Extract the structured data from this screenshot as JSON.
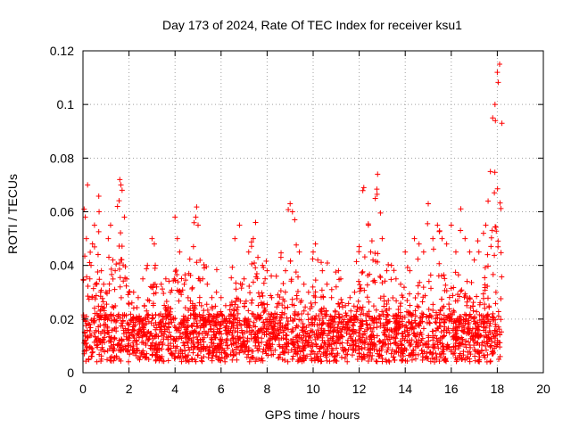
{
  "chart_data": {
    "type": "scatter",
    "title": "Day 173 of 2024, Rate Of TEC Index for receiver ksu1",
    "xlabel": "GPS time / hours",
    "ylabel": "ROTI / TECUs",
    "xlim": [
      0,
      20
    ],
    "ylim": [
      0,
      0.12
    ],
    "xticks": [
      0,
      2,
      4,
      6,
      8,
      10,
      12,
      14,
      16,
      18,
      20
    ],
    "xtick_labels": [
      "0",
      "2",
      "4",
      "6",
      "8",
      "10",
      "12",
      "14",
      "16",
      "18",
      "20"
    ],
    "yticks": [
      0,
      0.02,
      0.04,
      0.06,
      0.08,
      0.1,
      0.12
    ],
    "ytick_labels": [
      "0",
      "0.02",
      "0.04",
      "0.06",
      "0.08",
      "0.1",
      "0.12"
    ],
    "grid": true,
    "marker": "+",
    "color": "#ff0000",
    "series": [
      {
        "name": "ROTI",
        "note": "dense cloud of points from 0 to ~18.2 h, baseline mostly 0.003-0.025 TECU/s",
        "x": [
          0.05,
          0.1,
          0.15,
          0.2,
          0.3,
          0.35,
          0.5,
          0.6,
          0.7,
          0.8,
          0.9,
          1.0,
          1.1,
          1.2,
          1.3,
          1.4,
          1.5,
          1.6,
          1.65,
          1.7,
          1.8,
          1.9,
          2.0,
          2.2,
          2.4,
          2.6,
          2.8,
          3.0,
          3.1,
          3.2,
          3.4,
          3.6,
          3.8,
          4.0,
          4.1,
          4.2,
          4.4,
          4.6,
          4.8,
          4.9,
          5.0,
          5.2,
          5.4,
          5.6,
          5.8,
          6.0,
          6.2,
          6.4,
          6.6,
          6.8,
          7.0,
          7.2,
          7.4,
          7.5,
          7.6,
          7.8,
          8.0,
          8.2,
          8.4,
          8.6,
          8.8,
          9.0,
          9.1,
          9.2,
          9.4,
          9.6,
          9.8,
          10.0,
          10.1,
          10.2,
          10.4,
          10.6,
          10.8,
          11.0,
          11.1,
          11.2,
          11.4,
          11.6,
          11.8,
          12.0,
          12.2,
          12.4,
          12.5,
          12.6,
          12.7,
          12.8,
          13.0,
          13.2,
          13.4,
          13.6,
          13.8,
          14.0,
          14.2,
          14.4,
          14.6,
          14.8,
          15.0,
          15.2,
          15.4,
          15.6,
          15.8,
          16.0,
          16.2,
          16.4,
          16.6,
          16.8,
          17.0,
          17.2,
          17.4,
          17.5,
          17.6,
          17.7,
          17.8,
          17.9,
          18.0,
          18.1,
          18.2
        ],
        "y": [
          0.061,
          0.058,
          0.05,
          0.07,
          0.035,
          0.04,
          0.055,
          0.033,
          0.06,
          0.038,
          0.033,
          0.03,
          0.05,
          0.055,
          0.042,
          0.038,
          0.062,
          0.072,
          0.07,
          0.068,
          0.058,
          0.035,
          0.03,
          0.03,
          0.028,
          0.035,
          0.04,
          0.05,
          0.048,
          0.032,
          0.033,
          0.035,
          0.03,
          0.058,
          0.05,
          0.045,
          0.033,
          0.037,
          0.047,
          0.058,
          0.055,
          0.035,
          0.033,
          0.028,
          0.03,
          0.028,
          0.025,
          0.025,
          0.05,
          0.055,
          0.035,
          0.045,
          0.05,
          0.056,
          0.043,
          0.04,
          0.038,
          0.028,
          0.036,
          0.043,
          0.038,
          0.063,
          0.06,
          0.057,
          0.045,
          0.033,
          0.03,
          0.045,
          0.048,
          0.042,
          0.038,
          0.033,
          0.028,
          0.032,
          0.038,
          0.035,
          0.025,
          0.028,
          0.03,
          0.047,
          0.069,
          0.055,
          0.045,
          0.042,
          0.065,
          0.074,
          0.05,
          0.038,
          0.04,
          0.035,
          0.033,
          0.045,
          0.038,
          0.05,
          0.048,
          0.045,
          0.063,
          0.05,
          0.055,
          0.05,
          0.048,
          0.055,
          0.045,
          0.053,
          0.05,
          0.045,
          0.042,
          0.045,
          0.052,
          0.055,
          0.064,
          0.075,
          0.095,
          0.1,
          0.112,
          0.115,
          0.093
        ]
      }
    ]
  }
}
